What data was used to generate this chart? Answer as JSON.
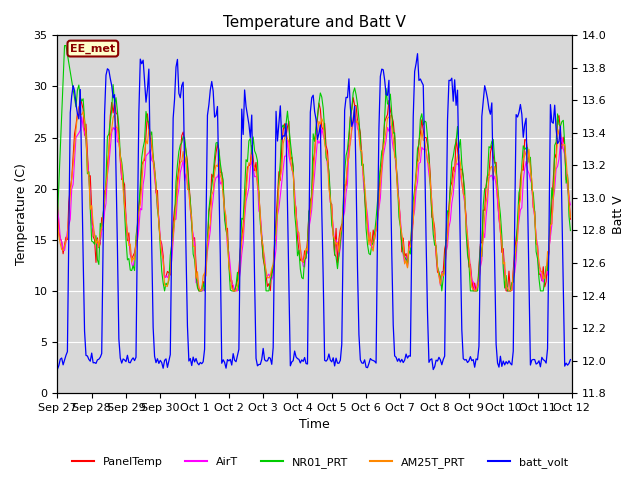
{
  "title": "Temperature and Batt V",
  "xlabel": "Time",
  "ylabel_left": "Temperature (C)",
  "ylabel_right": "Batt V",
  "ylim_left": [
    0,
    35
  ],
  "ylim_right": [
    11.8,
    14.0
  ],
  "yticks_left": [
    0,
    5,
    10,
    15,
    20,
    25,
    30,
    35
  ],
  "yticks_right": [
    11.8,
    12.0,
    12.2,
    12.4,
    12.6,
    12.8,
    13.0,
    13.2,
    13.4,
    13.6,
    13.8,
    14.0
  ],
  "annotation_text": "EE_met",
  "annotation_fg": "#8B0000",
  "annotation_bg": "#ffffcc",
  "background_color": "#ffffff",
  "plot_bg_color": "#d8d8d8",
  "grid_color": "#ffffff",
  "colors": {
    "PanelTemp": "#ff0000",
    "AirT": "#ff00ff",
    "NR01_PRT": "#00cc00",
    "AM25T_PRT": "#ff8800",
    "batt_volt": "#0000ff"
  },
  "xtick_labels": [
    "Sep 27",
    "Sep 28",
    "Sep 29",
    "Sep 30",
    "Oct 1",
    "Oct 2",
    "Oct 3",
    "Oct 4",
    "Oct 5",
    "Oct 6",
    "Oct 7",
    "Oct 8",
    "Oct 9",
    "Oct 10",
    "Oct 11",
    "Oct 12"
  ],
  "title_fontsize": 11,
  "axis_fontsize": 9,
  "tick_fontsize": 8
}
